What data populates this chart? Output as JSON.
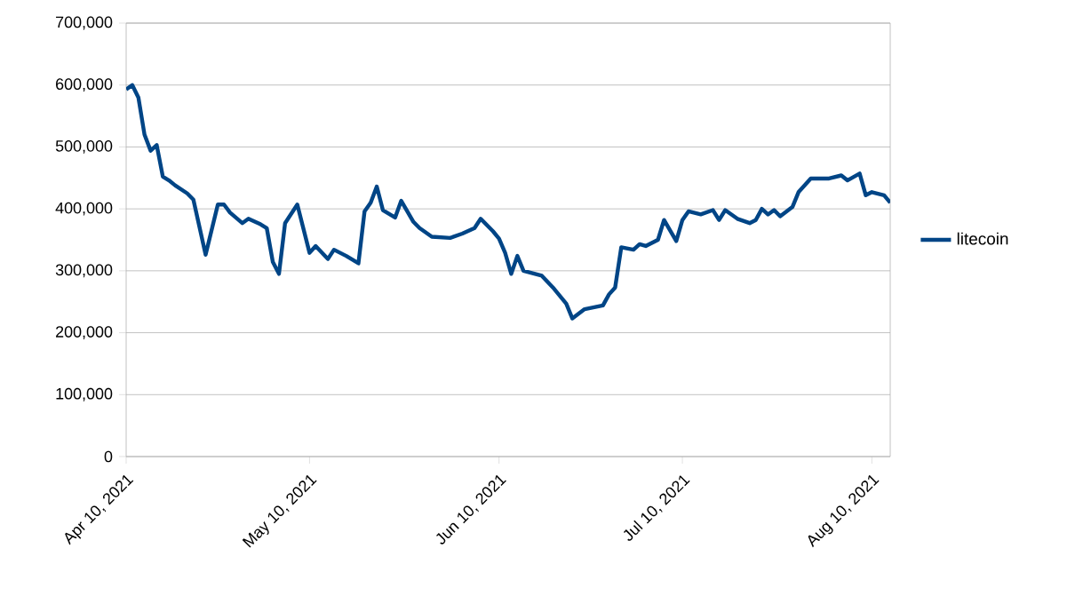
{
  "chart_data": {
    "type": "line",
    "xlim": [
      "2021-04-10",
      "2021-08-13"
    ],
    "ylim": [
      0,
      700000
    ],
    "xticks": [
      {
        "value": "2021-04-10",
        "label": "Apr 10, 2021"
      },
      {
        "value": "2021-05-10",
        "label": "May 10, 2021"
      },
      {
        "value": "2021-06-10",
        "label": "Jun 10, 2021"
      },
      {
        "value": "2021-07-10",
        "label": "Jul 10, 2021"
      },
      {
        "value": "2021-08-10",
        "label": "Aug 10, 2021"
      }
    ],
    "yticks": [
      0,
      {
        "value": 100000,
        "label": "100,000"
      },
      {
        "value": 200000,
        "label": "200,000"
      },
      {
        "value": 300000,
        "label": "300,000"
      },
      {
        "value": 400000,
        "label": "400,000"
      },
      {
        "value": 500000,
        "label": "500,000"
      },
      {
        "value": 600000,
        "label": "600,000"
      },
      {
        "value": 700000,
        "label": "700,000"
      }
    ],
    "grid": "y",
    "legend": "right",
    "marker": "none",
    "line_style": "solid",
    "x": [
      "2021-04-10",
      "2021-04-11",
      "2021-04-12",
      "2021-04-13",
      "2021-04-14",
      "2021-04-15",
      "2021-04-16",
      "2021-04-17",
      "2021-04-18",
      "2021-04-20",
      "2021-04-21",
      "2021-04-23",
      "2021-04-25",
      "2021-04-26",
      "2021-04-27",
      "2021-04-29",
      "2021-04-30",
      "2021-05-02",
      "2021-05-03",
      "2021-05-04",
      "2021-05-05",
      "2021-05-06",
      "2021-05-08",
      "2021-05-10",
      "2021-05-11",
      "2021-05-13",
      "2021-05-14",
      "2021-05-16",
      "2021-05-18",
      "2021-05-19",
      "2021-05-20",
      "2021-05-21",
      "2021-05-22",
      "2021-05-24",
      "2021-05-25",
      "2021-05-27",
      "2021-05-28",
      "2021-05-30",
      "2021-06-02",
      "2021-06-04",
      "2021-06-06",
      "2021-06-07",
      "2021-06-09",
      "2021-06-10",
      "2021-06-11",
      "2021-06-12",
      "2021-06-13",
      "2021-06-14",
      "2021-06-17",
      "2021-06-19",
      "2021-06-21",
      "2021-06-22",
      "2021-06-24",
      "2021-06-27",
      "2021-06-28",
      "2021-06-29",
      "2021-06-30",
      "2021-07-02",
      "2021-07-03",
      "2021-07-04",
      "2021-07-06",
      "2021-07-07",
      "2021-07-09",
      "2021-07-10",
      "2021-07-11",
      "2021-07-13",
      "2021-07-15",
      "2021-07-16",
      "2021-07-17",
      "2021-07-19",
      "2021-07-21",
      "2021-07-22",
      "2021-07-23",
      "2021-07-24",
      "2021-07-25",
      "2021-07-26",
      "2021-07-28",
      "2021-07-29",
      "2021-07-31",
      "2021-08-03",
      "2021-08-05",
      "2021-08-06",
      "2021-08-08",
      "2021-08-09",
      "2021-08-10",
      "2021-08-12",
      "2021-08-13"
    ],
    "series": [
      {
        "name": "litecoin",
        "color": "#004586",
        "values": [
          593000,
          600000,
          580000,
          520000,
          494000,
          503000,
          452000,
          446000,
          438000,
          425000,
          415000,
          326000,
          407000,
          407000,
          394000,
          377000,
          384000,
          375000,
          369000,
          314000,
          295000,
          377000,
          407000,
          329000,
          340000,
          319000,
          334000,
          324000,
          312000,
          396000,
          410000,
          436000,
          398000,
          386000,
          413000,
          379000,
          369000,
          355000,
          353000,
          360000,
          369000,
          384000,
          364000,
          352000,
          329000,
          295000,
          324000,
          300000,
          292000,
          271000,
          247000,
          223000,
          238000,
          244000,
          262000,
          273000,
          338000,
          334000,
          343000,
          340000,
          350000,
          382000,
          348000,
          382000,
          396000,
          391000,
          398000,
          382000,
          398000,
          384000,
          377000,
          382000,
          400000,
          391000,
          398000,
          388000,
          403000,
          427000,
          449000,
          449000,
          454000,
          446000,
          457000,
          422000,
          427000,
          422000,
          410000
        ]
      }
    ]
  }
}
